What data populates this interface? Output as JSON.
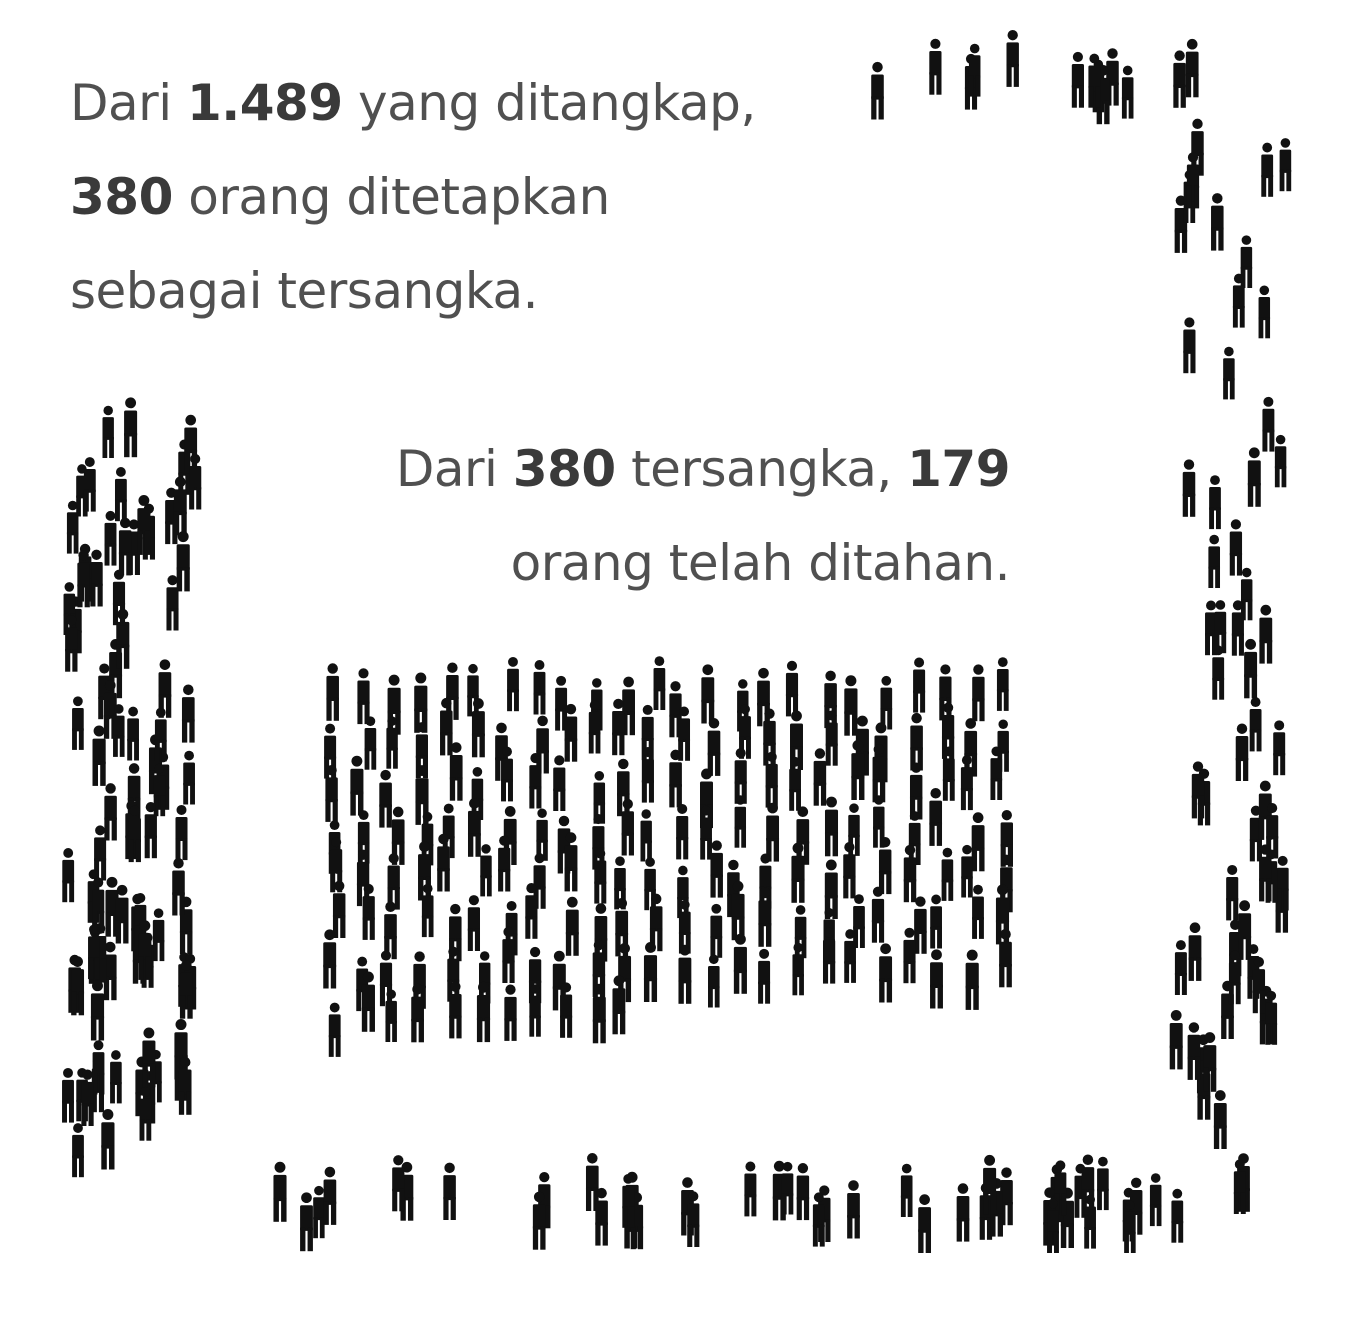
{
  "caption_1": {
    "line1": {
      "pre": "Dari ",
      "num": "1.489",
      "post": " yang ditangkap,"
    },
    "line2": {
      "num": "380",
      "post": " orang ditetapkan"
    },
    "line3": {
      "text": "sebagai tersangka."
    }
  },
  "caption_2": {
    "line1": {
      "pre": "Dari ",
      "num1": "380",
      "mid": " tersangka, ",
      "num2": "179"
    },
    "line2": {
      "text": "orang telah ditahan."
    }
  },
  "figures": {
    "icon": "person-icon",
    "color": "#111111",
    "arrested_total": 1489,
    "suspects": 380,
    "detained": 179
  }
}
